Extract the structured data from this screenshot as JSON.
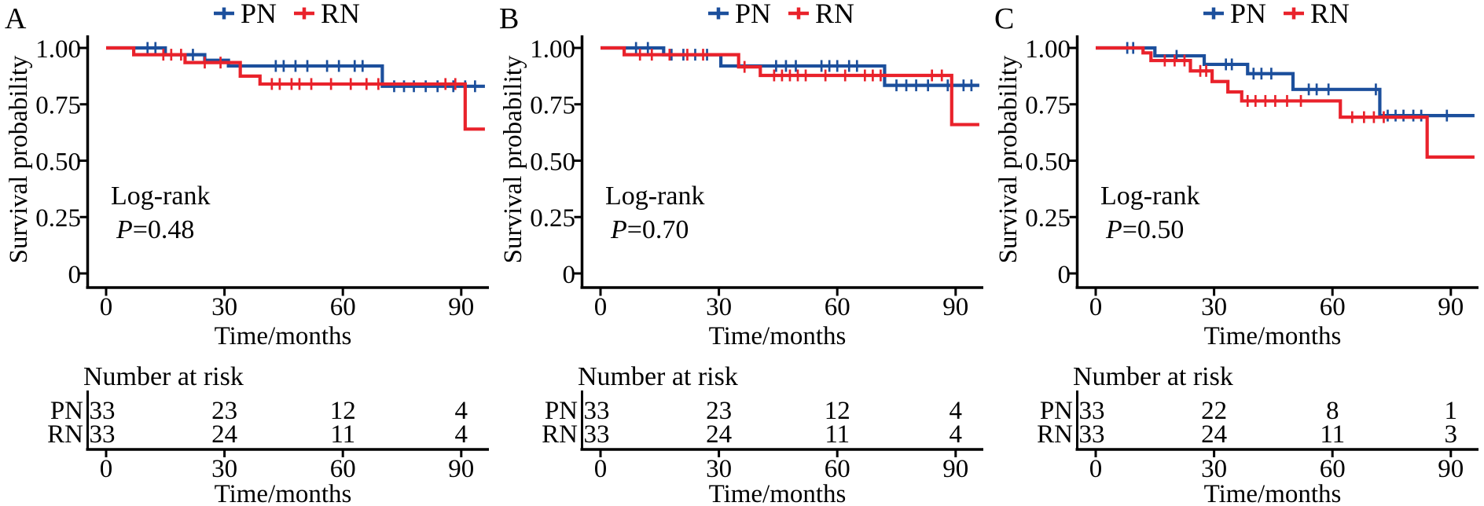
{
  "figure": {
    "y_axis_title": "Survival probability",
    "x_axis_title": "Time/months",
    "risk_header": "Number at risk",
    "colors": {
      "pn": "#1C4F9C",
      "rn": "#E9222B"
    }
  },
  "chart_data": [
    {
      "type": "line",
      "panel_label": "A",
      "ylabel": "Survival probability",
      "xlabel": "Time/months",
      "xlim": [
        0,
        96
      ],
      "ylim": [
        0,
        1
      ],
      "grid": false,
      "legend_position": "top",
      "x_ticks": [
        0,
        30,
        60,
        90
      ],
      "y_ticks": [
        {
          "label": "1.00",
          "value": 1.0
        },
        {
          "label": "0.75",
          "value": 0.75
        },
        {
          "label": "0.50",
          "value": 0.5
        },
        {
          "label": "0.25",
          "value": 0.25
        },
        {
          "label": "0",
          "value": 0.0
        }
      ],
      "annotation": {
        "line1": "Log-rank",
        "p_italic": "P",
        "p_rest": "=0.48"
      },
      "legend": [
        {
          "name": "PN",
          "color": "#1C4F9C"
        },
        {
          "name": "RN",
          "color": "#E9222B"
        }
      ],
      "series": [
        {
          "name": "PN",
          "color": "#1C4F9C",
          "end": 96,
          "steps": [
            [
              0,
              1.0
            ],
            [
              15,
              0.97
            ],
            [
              25,
              0.945
            ],
            [
              31,
              0.92
            ],
            [
              70,
              0.83
            ]
          ],
          "censors": [
            [
              10.5,
              1.0
            ],
            [
              12.5,
              1.0
            ],
            [
              22,
              0.97
            ],
            [
              43,
              0.92
            ],
            [
              45,
              0.92
            ],
            [
              48,
              0.92
            ],
            [
              51,
              0.92
            ],
            [
              56,
              0.92
            ],
            [
              59,
              0.92
            ],
            [
              63,
              0.92
            ],
            [
              65,
              0.92
            ],
            [
              73,
              0.83
            ],
            [
              75.5,
              0.83
            ],
            [
              78,
              0.83
            ],
            [
              81,
              0.83
            ],
            [
              84,
              0.83
            ],
            [
              88,
              0.83
            ],
            [
              91,
              0.83
            ],
            [
              93.5,
              0.83
            ]
          ]
        },
        {
          "name": "RN",
          "color": "#E9222B",
          "end": 96,
          "steps": [
            [
              0,
              1.0
            ],
            [
              7,
              0.97
            ],
            [
              20,
              0.935
            ],
            [
              34,
              0.875
            ],
            [
              39,
              0.84
            ],
            [
              91,
              0.64
            ]
          ],
          "censors": [
            [
              14.5,
              0.97
            ],
            [
              16.5,
              0.97
            ],
            [
              19,
              0.97
            ],
            [
              25,
              0.935
            ],
            [
              29,
              0.935
            ],
            [
              42,
              0.84
            ],
            [
              44,
              0.84
            ],
            [
              47,
              0.84
            ],
            [
              49,
              0.84
            ],
            [
              52,
              0.84
            ],
            [
              57,
              0.84
            ],
            [
              62,
              0.84
            ],
            [
              66,
              0.84
            ],
            [
              69,
              0.84
            ],
            [
              86,
              0.84
            ],
            [
              88.5,
              0.84
            ]
          ]
        }
      ],
      "number_at_risk": {
        "times": [
          0,
          30,
          60,
          90
        ],
        "rows": [
          {
            "label": "PN",
            "values": [
              33,
              23,
              12,
              4
            ]
          },
          {
            "label": "RN",
            "values": [
              33,
              24,
              11,
              4
            ]
          }
        ]
      }
    },
    {
      "type": "line",
      "panel_label": "B",
      "ylabel": "Survival probability",
      "xlabel": "Time/months",
      "xlim": [
        0,
        96
      ],
      "ylim": [
        0,
        1
      ],
      "grid": false,
      "legend_position": "top",
      "x_ticks": [
        0,
        30,
        60,
        90
      ],
      "y_ticks": [
        {
          "label": "1.00",
          "value": 1.0
        },
        {
          "label": "0.75",
          "value": 0.75
        },
        {
          "label": "0.50",
          "value": 0.5
        },
        {
          "label": "0.25",
          "value": 0.25
        },
        {
          "label": "0",
          "value": 0.0
        }
      ],
      "annotation": {
        "line1": "Log-rank",
        "p_italic": "P",
        "p_rest": "=0.70"
      },
      "legend": [
        {
          "name": "PN",
          "color": "#1C4F9C"
        },
        {
          "name": "RN",
          "color": "#E9222B"
        }
      ],
      "series": [
        {
          "name": "PN",
          "color": "#1C4F9C",
          "end": 96,
          "steps": [
            [
              0,
              1.0
            ],
            [
              16,
              0.97
            ],
            [
              30.5,
              0.92
            ],
            [
              72,
              0.834
            ]
          ],
          "censors": [
            [
              9,
              1.0
            ],
            [
              12,
              1.0
            ],
            [
              18,
              0.97
            ],
            [
              21,
              0.97
            ],
            [
              24,
              0.97
            ],
            [
              27,
              0.97
            ],
            [
              44.5,
              0.92
            ],
            [
              47,
              0.92
            ],
            [
              49.5,
              0.92
            ],
            [
              56,
              0.92
            ],
            [
              58,
              0.92
            ],
            [
              60,
              0.92
            ],
            [
              63,
              0.92
            ],
            [
              65,
              0.92
            ],
            [
              75,
              0.834
            ],
            [
              77.5,
              0.834
            ],
            [
              80,
              0.834
            ],
            [
              83,
              0.834
            ],
            [
              88,
              0.834
            ],
            [
              92,
              0.834
            ],
            [
              94,
              0.834
            ]
          ]
        },
        {
          "name": "RN",
          "color": "#E9222B",
          "end": 96,
          "steps": [
            [
              0,
              1.0
            ],
            [
              6,
              0.97
            ],
            [
              35,
              0.916
            ],
            [
              40.5,
              0.878
            ],
            [
              89,
              0.66
            ]
          ],
          "censors": [
            [
              10,
              0.97
            ],
            [
              13,
              0.97
            ],
            [
              17.5,
              0.97
            ],
            [
              22,
              0.97
            ],
            [
              26,
              0.97
            ],
            [
              36.5,
              0.916
            ],
            [
              44,
              0.878
            ],
            [
              46,
              0.878
            ],
            [
              48,
              0.878
            ],
            [
              50,
              0.878
            ],
            [
              52,
              0.878
            ],
            [
              57,
              0.878
            ],
            [
              62,
              0.878
            ],
            [
              67,
              0.878
            ],
            [
              69,
              0.878
            ],
            [
              71,
              0.878
            ],
            [
              84,
              0.878
            ],
            [
              86.5,
              0.878
            ]
          ]
        }
      ],
      "number_at_risk": {
        "times": [
          0,
          30,
          60,
          90
        ],
        "rows": [
          {
            "label": "PN",
            "values": [
              33,
              23,
              12,
              4
            ]
          },
          {
            "label": "RN",
            "values": [
              33,
              24,
              11,
              4
            ]
          }
        ]
      }
    },
    {
      "type": "line",
      "panel_label": "C",
      "ylabel": "Survival probability",
      "xlabel": "Time/months",
      "xlim": [
        0,
        96
      ],
      "ylim": [
        0,
        1
      ],
      "grid": false,
      "legend_position": "top",
      "x_ticks": [
        0,
        30,
        60,
        90
      ],
      "y_ticks": [
        {
          "label": "1.00",
          "value": 1.0
        },
        {
          "label": "0.75",
          "value": 0.75
        },
        {
          "label": "0.50",
          "value": 0.5
        },
        {
          "label": "0.25",
          "value": 0.25
        },
        {
          "label": "0",
          "value": 0.0
        }
      ],
      "annotation": {
        "line1": "Log-rank",
        "p_italic": "P",
        "p_rest": "=0.50"
      },
      "legend": [
        {
          "name": "PN",
          "color": "#1C4F9C"
        },
        {
          "name": "RN",
          "color": "#E9222B"
        }
      ],
      "series": [
        {
          "name": "PN",
          "color": "#1C4F9C",
          "end": 96,
          "steps": [
            [
              0,
              1.0
            ],
            [
              15,
              0.965
            ],
            [
              27.5,
              0.927
            ],
            [
              38.5,
              0.886
            ],
            [
              50,
              0.816
            ],
            [
              72,
              0.7
            ]
          ],
          "censors": [
            [
              8,
              1.0
            ],
            [
              9.5,
              1.0
            ],
            [
              20.5,
              0.965
            ],
            [
              33,
              0.927
            ],
            [
              34.5,
              0.927
            ],
            [
              40,
              0.886
            ],
            [
              42,
              0.886
            ],
            [
              44.5,
              0.886
            ],
            [
              54,
              0.816
            ],
            [
              56,
              0.816
            ],
            [
              59,
              0.816
            ],
            [
              71,
              0.816
            ],
            [
              74,
              0.7
            ],
            [
              76,
              0.7
            ],
            [
              78,
              0.7
            ],
            [
              80.5,
              0.7
            ],
            [
              82.5,
              0.7
            ],
            [
              89,
              0.7
            ]
          ]
        },
        {
          "name": "RN",
          "color": "#E9222B",
          "end": 96,
          "steps": [
            [
              0,
              1.0
            ],
            [
              12,
              0.978
            ],
            [
              14,
              0.944
            ],
            [
              24,
              0.898
            ],
            [
              29.5,
              0.851
            ],
            [
              33.5,
              0.805
            ],
            [
              37,
              0.765
            ],
            [
              62,
              0.693
            ],
            [
              84,
              0.516
            ]
          ],
          "censors": [
            [
              17.5,
              0.944
            ],
            [
              20,
              0.944
            ],
            [
              22.5,
              0.944
            ],
            [
              26.5,
              0.898
            ],
            [
              28,
              0.898
            ],
            [
              38.5,
              0.765
            ],
            [
              40.5,
              0.765
            ],
            [
              43,
              0.765
            ],
            [
              45.5,
              0.765
            ],
            [
              48.5,
              0.765
            ],
            [
              52,
              0.765
            ],
            [
              65,
              0.693
            ],
            [
              68,
              0.693
            ],
            [
              70.5,
              0.693
            ],
            [
              73,
              0.693
            ]
          ]
        }
      ],
      "number_at_risk": {
        "times": [
          0,
          30,
          60,
          90
        ],
        "rows": [
          {
            "label": "PN",
            "values": [
              33,
              22,
              8,
              1
            ]
          },
          {
            "label": "RN",
            "values": [
              33,
              24,
              11,
              3
            ]
          }
        ]
      }
    }
  ]
}
